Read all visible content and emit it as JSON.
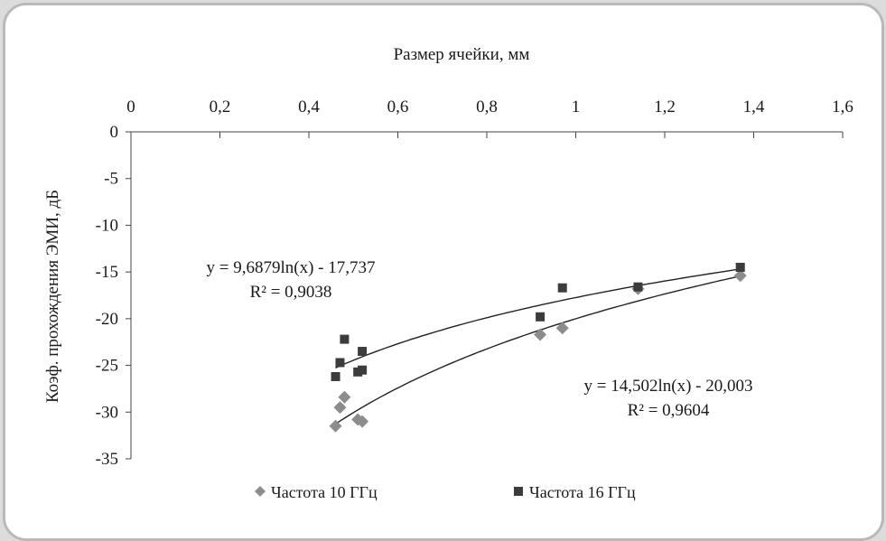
{
  "chart_data": {
    "type": "scatter",
    "xlabel": "Размер ячейки, мм",
    "ylabel": "Коэф. прохождения ЭМИ, дБ",
    "xlim": [
      0,
      1.6
    ],
    "ylim": [
      -35,
      0
    ],
    "x_ticks": [
      "0",
      "0,2",
      "0,4",
      "0,6",
      "0,8",
      "1",
      "1,2",
      "1,4",
      "1,6"
    ],
    "y_ticks": [
      "0",
      "-5",
      "-10",
      "-15",
      "-20",
      "-25",
      "-30",
      "-35"
    ],
    "x_axis_position": "top",
    "legend_position": "bottom",
    "grid": false,
    "series": [
      {
        "name": "Частота 10 ГГц",
        "marker": "diamond",
        "color": "#8c8c8c",
        "x": [
          0.46,
          0.47,
          0.48,
          0.51,
          0.52,
          0.92,
          0.97,
          1.14,
          1.37
        ],
        "y": [
          -31.5,
          -29.5,
          -28.4,
          -30.8,
          -31.0,
          -21.7,
          -21.0,
          -16.8,
          -15.4
        ],
        "trendline": {
          "type": "log",
          "a": 14.502,
          "b": -20.003,
          "equation": "y = 14,502ln(x) - 20,003",
          "r2": "R² = 0,9604"
        }
      },
      {
        "name": "Частота 16 ГГц",
        "marker": "square",
        "color": "#3c3c3c",
        "x": [
          0.46,
          0.47,
          0.48,
          0.51,
          0.52,
          0.52,
          0.92,
          0.97,
          1.14,
          1.37
        ],
        "y": [
          -26.2,
          -24.7,
          -22.2,
          -25.7,
          -25.5,
          -23.5,
          -19.8,
          -16.7,
          -16.6,
          -14.5
        ],
        "trendline": {
          "type": "log",
          "a": 9.6879,
          "b": -17.737,
          "equation": "y = 9,6879ln(x) - 17,737",
          "r2": "R² = 0,9038"
        }
      }
    ]
  }
}
